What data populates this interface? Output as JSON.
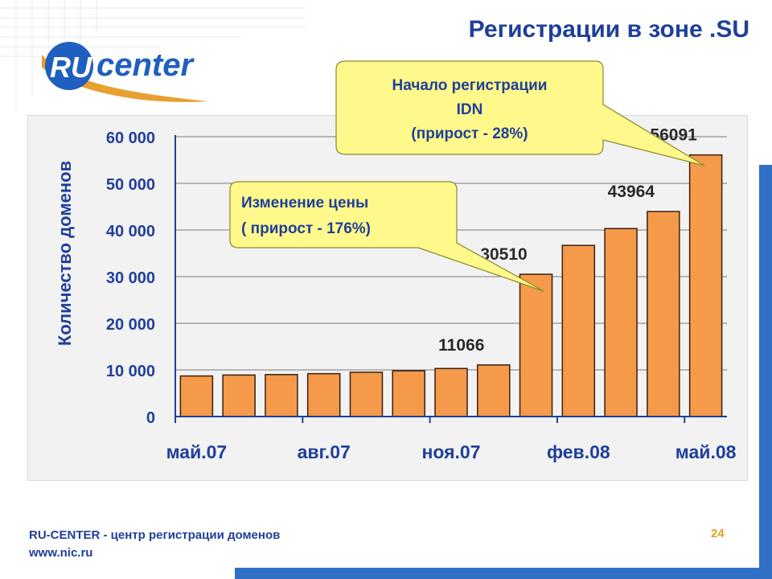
{
  "title": "Регистрации в зоне  .SU",
  "logo": {
    "ru": "RU",
    "center": "center"
  },
  "footer": {
    "line1": "RU-CENTER - центр регистрации доменов",
    "line2": "www.nic.ru",
    "page": "24"
  },
  "callouts": {
    "idn": {
      "line1": "Начало регистрации",
      "line2": "IDN",
      "line3": "(прирост  - 28%)"
    },
    "price": {
      "line1": "Изменение цены",
      "line2": "( прирост - 176%)"
    }
  },
  "colors": {
    "bar": "#f59a4a",
    "bar_stroke": "#3a2010",
    "axis": "#1f3f9a",
    "text": "#1f3f9a",
    "callout_fill": "#fff88a"
  },
  "chart_data": {
    "type": "bar",
    "ylabel": "Количество доменов",
    "ylim": [
      0,
      60000
    ],
    "yticks": [
      "0",
      "10 000",
      "20 000",
      "30 000",
      "40 000",
      "50 000",
      "60 000"
    ],
    "xtick_labels": [
      "май.07",
      "авг.07",
      "ноя.07",
      "фев.08",
      "май.08"
    ],
    "values": [
      8700,
      8900,
      9000,
      9200,
      9500,
      9800,
      10300,
      11066,
      30510,
      36700,
      40300,
      43964,
      56091
    ],
    "data_labels": [
      {
        "index": 7,
        "text": "11066"
      },
      {
        "index": 8,
        "text": "30510"
      },
      {
        "index": 11,
        "text": "43964"
      },
      {
        "index": 12,
        "text": "56091"
      }
    ],
    "grid": true
  }
}
